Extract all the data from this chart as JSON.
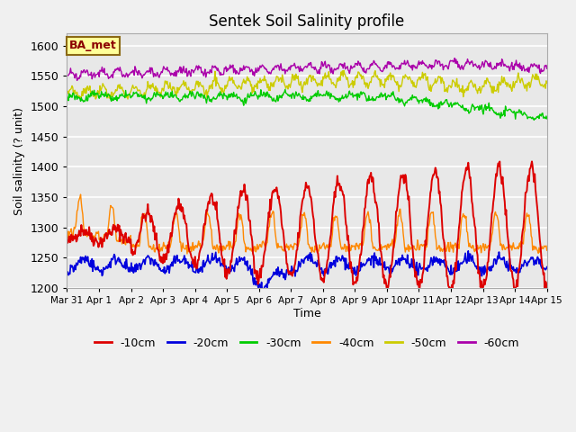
{
  "title": "Sentek Soil Salinity profile",
  "xlabel": "Time",
  "ylabel": "Soil salinity (? unit)",
  "ylim": [
    1200,
    1620
  ],
  "yticks": [
    1200,
    1250,
    1300,
    1350,
    1400,
    1450,
    1500,
    1550,
    1600
  ],
  "xtick_labels": [
    "Mar 31",
    "Apr 1",
    "Apr 2",
    "Apr 3",
    "Apr 4",
    "Apr 5",
    "Apr 6",
    "Apr 7",
    "Apr 8",
    "Apr 9",
    "Apr 10",
    "Apr 11",
    "Apr 12",
    "Apr 13",
    "Apr 14",
    "Apr 15"
  ],
  "legend_label": "BA_met",
  "series_colors": {
    "-10cm": "#dd0000",
    "-20cm": "#0000dd",
    "-30cm": "#00cc00",
    "-40cm": "#ff8800",
    "-50cm": "#cccc00",
    "-60cm": "#aa00aa"
  },
  "background_color": "#e8e8e8",
  "grid_color": "#ffffff",
  "fig_bg": "#f0f0f0",
  "n_points": 672,
  "seed": 42
}
